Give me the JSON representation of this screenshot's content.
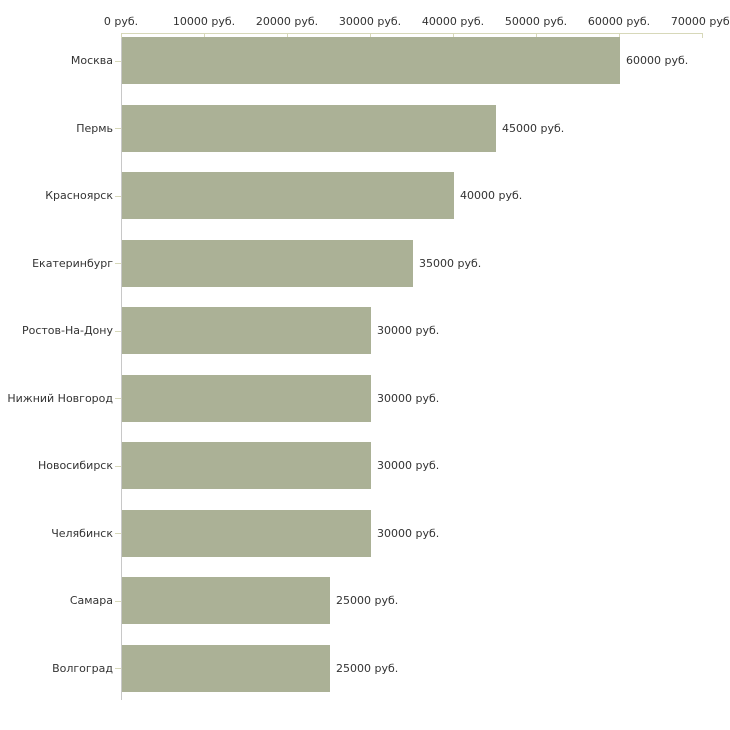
{
  "chart_data": {
    "type": "bar",
    "orientation": "horizontal",
    "title": "",
    "xlabel": "",
    "ylabel": "",
    "categories": [
      "Москва",
      "Пермь",
      "Красноярск",
      "Екатеринбург",
      "Ростов-На-Дону",
      "Нижний Новгород",
      "Новосибирск",
      "Челябинск",
      "Самара",
      "Волгоград"
    ],
    "values": [
      60000,
      45000,
      40000,
      35000,
      30000,
      30000,
      30000,
      30000,
      25000,
      25000
    ],
    "value_labels": [
      "60000 руб.",
      "45000 руб.",
      "40000 руб.",
      "35000 руб.",
      "30000 руб.",
      "30000 руб.",
      "30000 руб.",
      "30000 руб.",
      "25000 руб.",
      "25000 руб."
    ],
    "x_axis": {
      "position": "top",
      "min": 0,
      "max": 70000,
      "ticks": [
        0,
        10000,
        20000,
        30000,
        40000,
        50000,
        60000,
        70000
      ],
      "tick_labels": [
        "0 руб.",
        "10000 руб.",
        "20000 руб.",
        "30000 руб.",
        "40000 руб.",
        "50000 руб.",
        "60000 руб.",
        "70000 руб."
      ]
    },
    "grid": false,
    "legend": false,
    "colors": {
      "bar": "#abb196",
      "axis": "#d7d8b9",
      "baseline": "#c8c8c8",
      "text": "#333333",
      "background": "#ffffff"
    }
  }
}
